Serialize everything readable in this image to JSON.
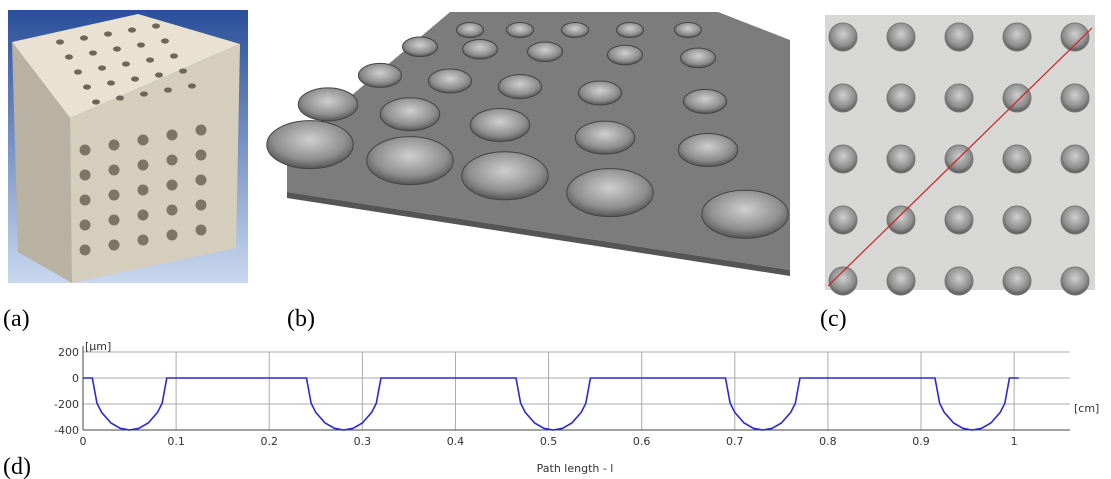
{
  "panel_labels": [
    "(a)",
    "(b)",
    "(c)",
    "(d)"
  ],
  "chart_data": {
    "type": "line",
    "y_unit": "[µm]",
    "x_unit": "[cm]",
    "x_label": "Path length - l",
    "xlim": [
      0,
      1.06
    ],
    "ylim": [
      -400,
      200
    ],
    "xticks": [
      0,
      0.1,
      0.2,
      0.3,
      0.4,
      0.5,
      0.6,
      0.7,
      0.8,
      0.9,
      1
    ],
    "yticks": [
      -400,
      -200,
      0,
      200
    ],
    "grid": true,
    "series": [
      {
        "color": "#2a2ad0",
        "x": [
          0,
          0.01,
          0.015,
          0.02,
          0.03,
          0.04,
          0.05,
          0.06,
          0.07,
          0.08,
          0.085,
          0.09,
          0.24,
          0.245,
          0.25,
          0.26,
          0.27,
          0.28,
          0.29,
          0.3,
          0.31,
          0.315,
          0.32,
          0.465,
          0.47,
          0.475,
          0.485,
          0.495,
          0.505,
          0.515,
          0.525,
          0.535,
          0.54,
          0.545,
          0.69,
          0.695,
          0.7,
          0.71,
          0.72,
          0.73,
          0.74,
          0.75,
          0.76,
          0.765,
          0.77,
          0.915,
          0.92,
          0.925,
          0.935,
          0.945,
          0.955,
          0.965,
          0.975,
          0.985,
          0.99,
          0.995,
          1.005
        ],
        "values": [
          0,
          0,
          -194,
          -265,
          -346,
          -387,
          -400,
          -387,
          -346,
          -265,
          -194,
          0,
          0,
          -194,
          -265,
          -346,
          -387,
          -400,
          -387,
          -346,
          -265,
          -194,
          0,
          0,
          -194,
          -265,
          -346,
          -387,
          -400,
          -387,
          -346,
          -265,
          -194,
          0,
          0,
          -194,
          -265,
          -346,
          -387,
          -400,
          -387,
          -346,
          -265,
          -194,
          0,
          0,
          -194,
          -265,
          -346,
          -387,
          -400,
          -387,
          -346,
          -265,
          -194,
          0,
          0
        ]
      }
    ]
  }
}
